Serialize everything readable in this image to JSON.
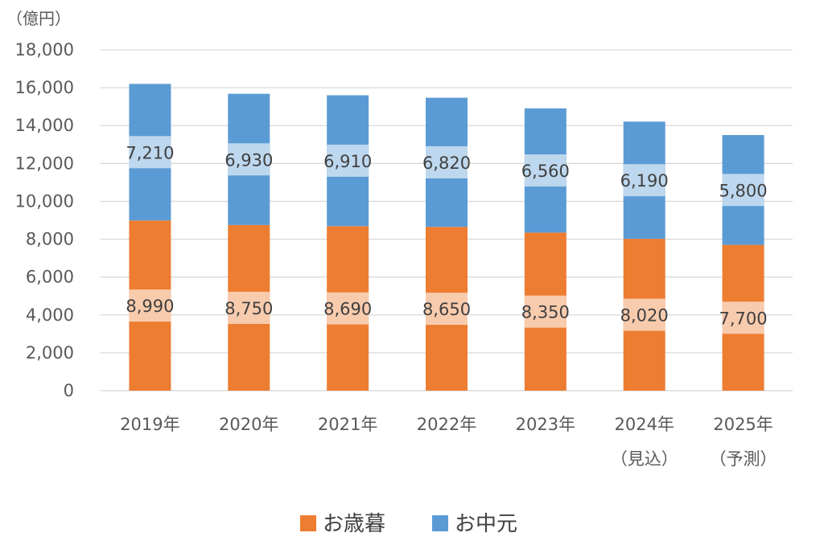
{
  "chart_data": {
    "type": "bar",
    "stacked": true,
    "unit_label": "（億円）",
    "ylim": [
      0,
      18000
    ],
    "yticks": [
      "0",
      "2,000",
      "4,000",
      "6,000",
      "8,000",
      "10,000",
      "12,000",
      "14,000",
      "16,000",
      "18,000"
    ],
    "categories": [
      [
        "2019年"
      ],
      [
        "2020年"
      ],
      [
        "2021年"
      ],
      [
        "2022年"
      ],
      [
        "2023年"
      ],
      [
        "2024年",
        "（見込）"
      ],
      [
        "2025年",
        "（予測）"
      ]
    ],
    "series": [
      {
        "name": "お歳暮",
        "color": "#ED7D31",
        "label_bg": "#F8CBAD",
        "values": [
          8990,
          8750,
          8690,
          8650,
          8350,
          8020,
          7700
        ],
        "labels": [
          "8,990",
          "8,750",
          "8,690",
          "8,650",
          "8,350",
          "8,020",
          "7,700"
        ]
      },
      {
        "name": "お中元",
        "color": "#5B9BD5",
        "label_bg": "#BDD7EE",
        "values": [
          7210,
          6930,
          6910,
          6820,
          6560,
          6190,
          5800
        ],
        "labels": [
          "7,210",
          "6,930",
          "6,910",
          "6,820",
          "6,560",
          "6,190",
          "5,800"
        ]
      }
    ],
    "grid": true,
    "legend_position": "bottom"
  }
}
